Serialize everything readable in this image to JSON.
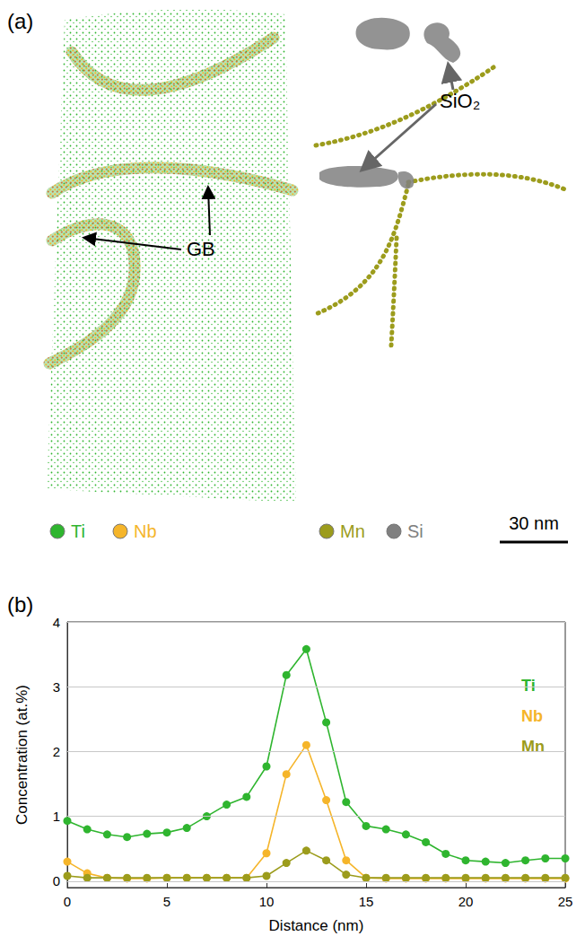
{
  "panel_a": {
    "label": "(a)",
    "left_map": {
      "annotation": "GB",
      "legend": [
        {
          "name": "Ti",
          "color": "#2fb52f"
        },
        {
          "name": "Nb",
          "color": "#f5b52a"
        }
      ]
    },
    "right_map": {
      "annotation": "SiO₂",
      "legend": [
        {
          "name": "Mn",
          "color": "#9c9c1c"
        },
        {
          "name": "Si",
          "color": "#808080"
        }
      ]
    },
    "scale_bar": "30 nm"
  },
  "chart_data": {
    "label": "(b)",
    "type": "line",
    "xlabel": "Distance (nm)",
    "ylabel": "Concentration (at.%)",
    "x": [
      0,
      1,
      2,
      3,
      4,
      5,
      6,
      7,
      8,
      9,
      10,
      11,
      12,
      13,
      14,
      15,
      16,
      17,
      18,
      19,
      20,
      21,
      22,
      23,
      24,
      25
    ],
    "series": [
      {
        "name": "Ti",
        "color": "#2fb52f",
        "values": [
          0.93,
          0.8,
          0.72,
          0.68,
          0.73,
          0.75,
          0.82,
          1.0,
          1.18,
          1.3,
          1.77,
          3.18,
          3.58,
          2.45,
          1.22,
          0.85,
          0.8,
          0.72,
          0.6,
          0.42,
          0.32,
          0.3,
          0.28,
          0.32,
          0.35,
          0.35
        ]
      },
      {
        "name": "Nb",
        "color": "#f5b52a",
        "values": [
          0.3,
          0.12,
          0.05,
          0.04,
          0.04,
          0.05,
          0.05,
          0.05,
          0.05,
          0.05,
          0.43,
          1.65,
          2.1,
          1.25,
          0.32,
          0.05,
          0.04,
          0.04,
          0.04,
          0.04,
          0.04,
          0.04,
          0.04,
          0.04,
          0.04,
          0.04
        ]
      },
      {
        "name": "Mn",
        "color": "#9c9c1c",
        "values": [
          0.08,
          0.05,
          0.05,
          0.05,
          0.05,
          0.05,
          0.05,
          0.05,
          0.05,
          0.05,
          0.08,
          0.28,
          0.47,
          0.32,
          0.1,
          0.05,
          0.05,
          0.05,
          0.05,
          0.05,
          0.05,
          0.05,
          0.05,
          0.05,
          0.05,
          0.05
        ]
      }
    ],
    "xlim": [
      0,
      25
    ],
    "xticks": [
      0,
      5,
      10,
      15,
      20,
      25
    ],
    "ylim": [
      -0.1,
      4
    ],
    "yticks": [
      0,
      1,
      2,
      3,
      4
    ],
    "grid": true,
    "legend": "right",
    "marker": "circle"
  }
}
